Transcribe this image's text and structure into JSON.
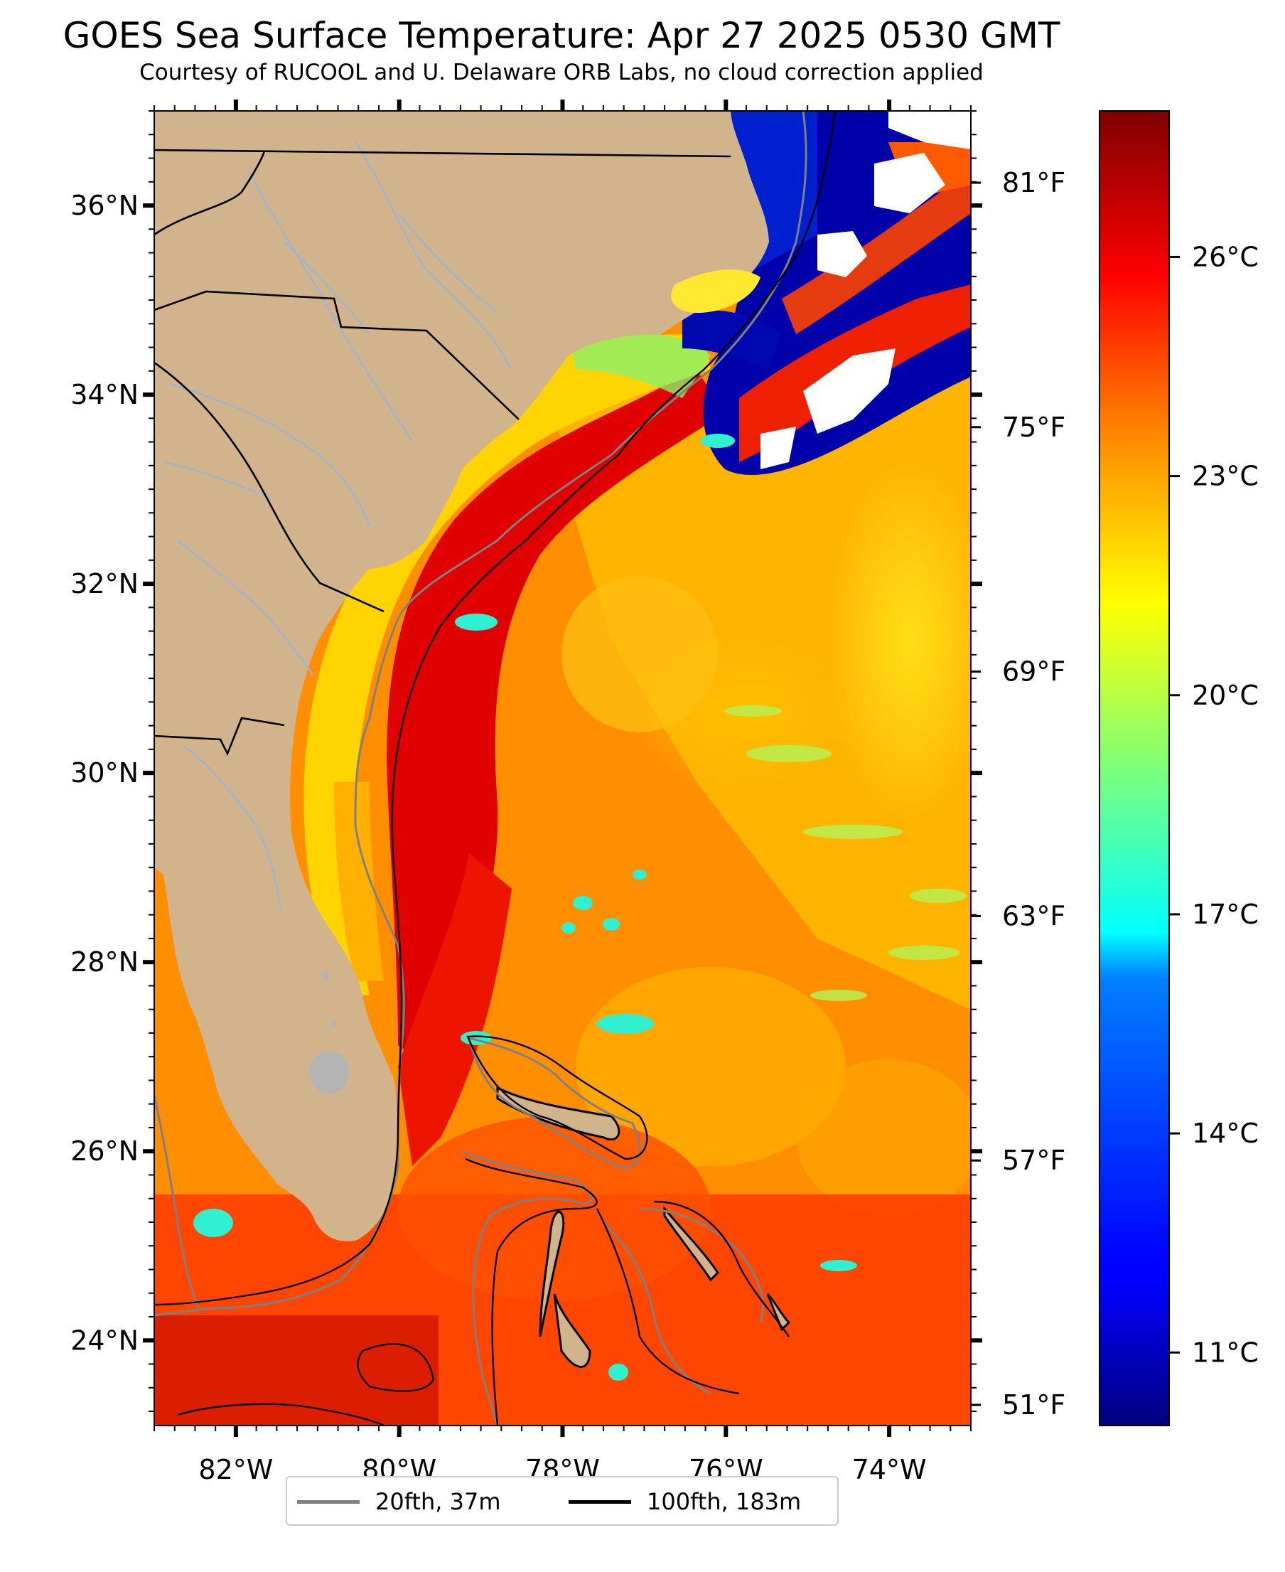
{
  "title": "GOES Sea Surface Temperature: Apr 27 2025 0530 GMT",
  "subtitle": "Courtesy of RUCOOL and U. Delaware ORB Labs, no cloud correction applied",
  "map": {
    "lon_range": [
      -83,
      -73
    ],
    "lat_range": [
      23.1,
      37.0
    ],
    "lon_ticks": [
      {
        "value": -82,
        "label": "82°W"
      },
      {
        "value": -80,
        "label": "80°W"
      },
      {
        "value": -78,
        "label": "78°W"
      },
      {
        "value": -76,
        "label": "76°W"
      },
      {
        "value": -74,
        "label": "74°W"
      }
    ],
    "lat_ticks": [
      {
        "value": 36,
        "label": "36°N"
      },
      {
        "value": 34,
        "label": "34°N"
      },
      {
        "value": 32,
        "label": "32°N"
      },
      {
        "value": 30,
        "label": "30°N"
      },
      {
        "value": 28,
        "label": "28°N"
      },
      {
        "value": 26,
        "label": "26°N"
      },
      {
        "value": 24,
        "label": "24°N"
      }
    ],
    "fahrenheit_ticks": [
      {
        "value": 81,
        "label": "81°F"
      },
      {
        "value": 75,
        "label": "75°F"
      },
      {
        "value": 69,
        "label": "69°F"
      },
      {
        "value": 63,
        "label": "63°F"
      },
      {
        "value": 57,
        "label": "57°F"
      },
      {
        "value": 51,
        "label": "51°F"
      }
    ],
    "colors": {
      "land": "#d2b48c",
      "rivers": "#9bb5d6",
      "borders": "#000000",
      "cloud": "#ffffff",
      "lakes": "#b4b4b4"
    }
  },
  "colorbar": {
    "colormap": "jet",
    "range_c": [
      10,
      28
    ],
    "ticks": [
      {
        "value": 26,
        "label": "26°C"
      },
      {
        "value": 23,
        "label": "23°C"
      },
      {
        "value": 20,
        "label": "20°C"
      },
      {
        "value": 17,
        "label": "17°C"
      },
      {
        "value": 14,
        "label": "14°C"
      },
      {
        "value": 11,
        "label": "11°C"
      }
    ]
  },
  "legend": {
    "entries": [
      {
        "label": "20fth, 37m",
        "color": "#808080"
      },
      {
        "label": "100fth, 183m",
        "color": "#000000"
      }
    ]
  }
}
